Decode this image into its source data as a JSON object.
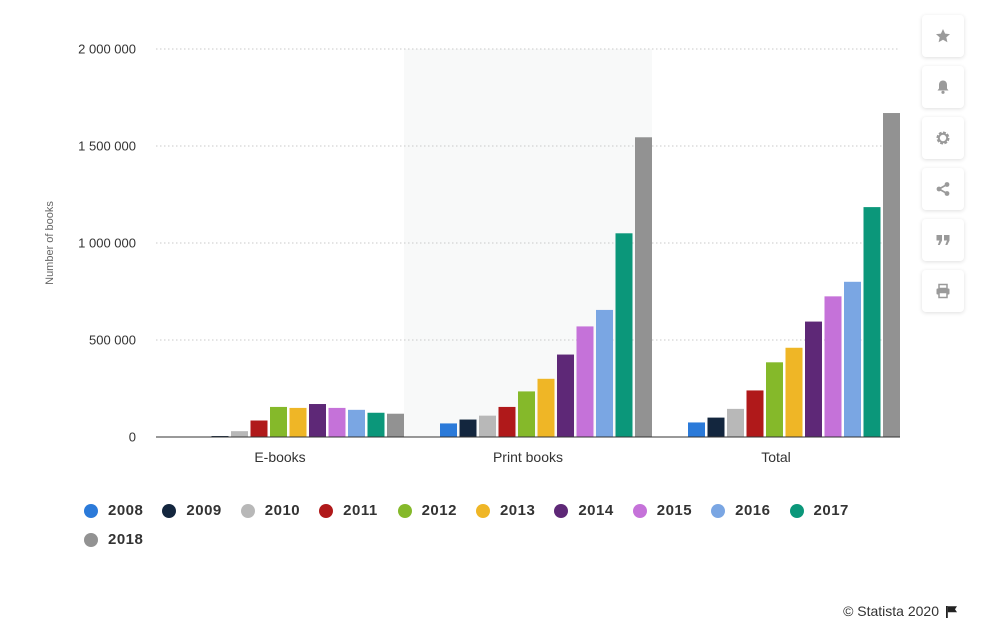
{
  "chart_data": {
    "type": "bar",
    "title": "",
    "xlabel": "",
    "ylabel": "Number of books",
    "ylim": [
      0,
      2000000
    ],
    "yticks": [
      {
        "value": 0,
        "label": "0"
      },
      {
        "value": 500000,
        "label": "500 000"
      },
      {
        "value": 1000000,
        "label": "1 000 000"
      },
      {
        "value": 1500000,
        "label": "1 500 000"
      },
      {
        "value": 2000000,
        "label": "2 000 000"
      }
    ],
    "categories": [
      "E-books",
      "Print books",
      "Total"
    ],
    "series": [
      {
        "name": "2008",
        "color": "#2b7ad9",
        "values": [
          2000,
          70000,
          75000
        ]
      },
      {
        "name": "2009",
        "color": "#13263e",
        "values": [
          5000,
          90000,
          100000
        ]
      },
      {
        "name": "2010",
        "color": "#b8b8b8",
        "values": [
          30000,
          110000,
          145000
        ]
      },
      {
        "name": "2011",
        "color": "#b0191a",
        "values": [
          85000,
          155000,
          240000
        ]
      },
      {
        "name": "2012",
        "color": "#85b92a",
        "values": [
          155000,
          235000,
          385000
        ]
      },
      {
        "name": "2013",
        "color": "#efb626",
        "values": [
          150000,
          300000,
          460000
        ]
      },
      {
        "name": "2014",
        "color": "#5e2877",
        "values": [
          170000,
          425000,
          595000
        ]
      },
      {
        "name": "2015",
        "color": "#c572d9",
        "values": [
          150000,
          570000,
          725000
        ]
      },
      {
        "name": "2016",
        "color": "#7aa6e3",
        "values": [
          140000,
          655000,
          800000
        ]
      },
      {
        "name": "2017",
        "color": "#0b977a",
        "values": [
          125000,
          1050000,
          1185000
        ]
      },
      {
        "name": "2018",
        "color": "#929292",
        "values": [
          120000,
          1545000,
          1670000
        ]
      }
    ],
    "grid": true,
    "legend": "bottom"
  },
  "toolbar": {
    "buttons": [
      {
        "name": "favorite-button",
        "icon": "star-icon"
      },
      {
        "name": "notification-button",
        "icon": "bell-icon"
      },
      {
        "name": "settings-button",
        "icon": "gear-icon"
      },
      {
        "name": "share-button",
        "icon": "share-icon"
      },
      {
        "name": "cite-button",
        "icon": "quote-icon"
      },
      {
        "name": "print-button",
        "icon": "printer-icon"
      }
    ]
  },
  "footer": {
    "credit": "© Statista 2020"
  }
}
